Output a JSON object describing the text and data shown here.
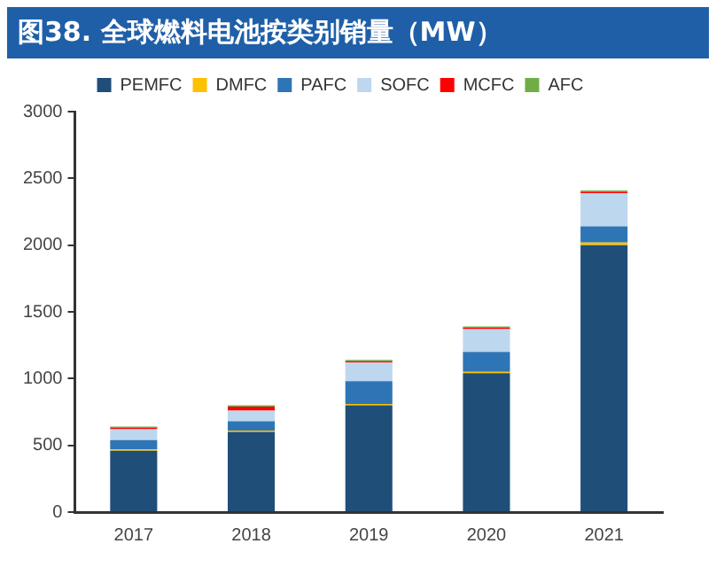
{
  "chart_data": {
    "type": "bar",
    "title": "图38. 全球燃料电池按类别销量（MW）",
    "categories": [
      "2017",
      "2018",
      "2019",
      "2020",
      "2021"
    ],
    "stacked": true,
    "ylim": [
      0,
      3000
    ],
    "yticks": [
      0,
      500,
      1000,
      1500,
      2000,
      2500,
      3000
    ],
    "grid": false,
    "legend": "top",
    "series": [
      {
        "name": "PEMFC",
        "color": "#1f4e79",
        "values": [
          460,
          600,
          800,
          1040,
          2000
        ]
      },
      {
        "name": "DMFC",
        "color": "#ffc000",
        "values": [
          10,
          10,
          10,
          10,
          20
        ]
      },
      {
        "name": "PAFC",
        "color": "#2e75b6",
        "values": [
          70,
          70,
          170,
          150,
          120
        ]
      },
      {
        "name": "SOFC",
        "color": "#bdd7ee",
        "values": [
          80,
          80,
          140,
          170,
          250
        ]
      },
      {
        "name": "MCFC",
        "color": "#ff0000",
        "values": [
          10,
          30,
          10,
          10,
          10
        ]
      },
      {
        "name": "AFC",
        "color": "#70ad47",
        "values": [
          10,
          10,
          10,
          10,
          10
        ]
      }
    ]
  }
}
